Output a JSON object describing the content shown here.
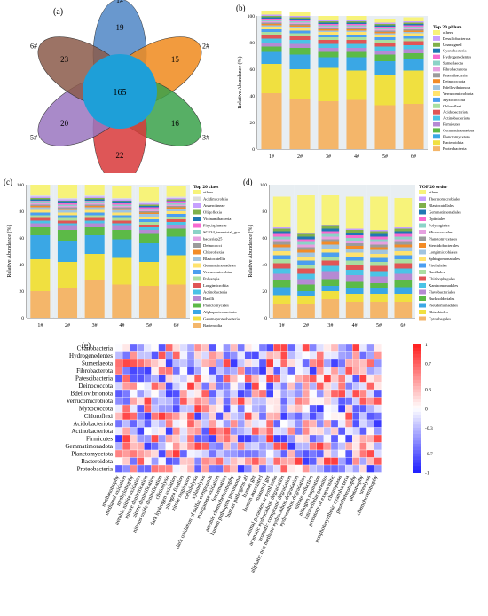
{
  "colors": {
    "palette20": [
      "#f4b66a",
      "#f0e040",
      "#3aa7e5",
      "#5cba47",
      "#b58ad3",
      "#4ac3e6",
      "#e05555",
      "#aadfa0",
      "#4b9ef0",
      "#ffe36e",
      "#a0c4e0",
      "#f28c28",
      "#9b9b9b",
      "#e6a0e0",
      "#8bd3c7",
      "#f76ad0",
      "#1f77b4",
      "#7fb04a",
      "#c7a0ff",
      "#ddd"
    ]
  },
  "venn": {
    "panel_label": "(a)",
    "center_value": "165",
    "petals": [
      {
        "label": "1#",
        "value": "19",
        "color": "#4f86c6"
      },
      {
        "label": "2#",
        "value": "15",
        "color": "#f08a1c"
      },
      {
        "label": "3#",
        "value": "16",
        "color": "#3aa14a"
      },
      {
        "label": "4#",
        "value": "22",
        "color": "#d8383a"
      },
      {
        "label": "5#",
        "value": "20",
        "color": "#9a75c0"
      },
      {
        "label": "6#",
        "value": "23",
        "color": "#8b5a4a"
      }
    ],
    "center_color": "#1e9fd8"
  },
  "chart_data": [
    {
      "type": "bar",
      "panel": "(b)",
      "stacked": true,
      "title": "Top 20 phlum",
      "ylabel": "Relative Abundance (%)",
      "ylim": [
        0,
        100
      ],
      "yticks": [
        "0",
        "20",
        "40",
        "60",
        "80",
        "100"
      ],
      "categories": [
        "1#",
        "2#",
        "3#",
        "4#",
        "5#",
        "6#"
      ],
      "legend_position": "right",
      "series": [
        {
          "name": "Proteobacteria",
          "values": [
            42,
            38,
            36,
            37,
            33,
            34
          ]
        },
        {
          "name": "Bacteroidota",
          "values": [
            22,
            22,
            25,
            22,
            23,
            25
          ]
        },
        {
          "name": "Planctomycetota",
          "values": [
            9,
            11,
            8,
            10,
            10,
            9
          ]
        },
        {
          "name": "Gemmatimonadota",
          "values": [
            4,
            5,
            4,
            4,
            5,
            4
          ]
        },
        {
          "name": "Firmicutes",
          "values": [
            3,
            3,
            3,
            3,
            3,
            3
          ]
        },
        {
          "name": "Actinobacteriota",
          "values": [
            3,
            3,
            3,
            3,
            3,
            3
          ]
        },
        {
          "name": "Acidobacteriota",
          "values": [
            3,
            3,
            3,
            3,
            3,
            3
          ]
        },
        {
          "name": "Chloroflexi",
          "values": [
            2,
            2,
            2,
            2,
            2,
            2
          ]
        },
        {
          "name": "Myxococcota",
          "values": [
            2,
            2,
            2,
            2,
            2,
            2
          ]
        },
        {
          "name": "Verrucomicrobiota",
          "values": [
            2,
            2,
            2,
            2,
            2,
            2
          ]
        },
        {
          "name": "Bdellovibrionota",
          "values": [
            1,
            1,
            1,
            1,
            1,
            1
          ]
        },
        {
          "name": "Deinococcota",
          "values": [
            1,
            1,
            1,
            1,
            1,
            1
          ]
        },
        {
          "name": "Patescibacteria",
          "values": [
            1,
            1,
            1,
            1,
            1,
            1
          ]
        },
        {
          "name": "Fibrobacterota",
          "values": [
            1,
            1,
            1,
            1,
            1,
            1
          ]
        },
        {
          "name": "Sumerlaeota",
          "values": [
            1,
            1,
            1,
            1,
            1,
            1
          ]
        },
        {
          "name": "Hydrogenedentes",
          "values": [
            1,
            1,
            1,
            1,
            1,
            1
          ]
        },
        {
          "name": "Cyanobacteria",
          "values": [
            1,
            1,
            1,
            1,
            1,
            1
          ]
        },
        {
          "name": "Unassigned",
          "values": [
            1,
            1,
            1,
            1,
            1,
            1
          ]
        },
        {
          "name": "Desulfobacterota",
          "values": [
            1,
            1,
            1,
            1,
            1,
            1
          ]
        },
        {
          "name": "others",
          "values": [
            3,
            3,
            3,
            3,
            3,
            3
          ]
        }
      ]
    },
    {
      "type": "bar",
      "panel": "(c)",
      "stacked": true,
      "title": "Top 20 class",
      "ylabel": "Relative Abundance (%)",
      "ylim": [
        0,
        100
      ],
      "yticks": [
        "0",
        "20",
        "40",
        "60",
        "80",
        "100"
      ],
      "categories": [
        "1#",
        "2#",
        "3#",
        "4#",
        "5#",
        "6#"
      ],
      "legend_position": "right",
      "series": [
        {
          "name": "Bacteroidia",
          "values": [
            20,
            22,
            28,
            25,
            24,
            25
          ]
        },
        {
          "name": "Gammaproteobacteria",
          "values": [
            24,
            20,
            20,
            20,
            18,
            22
          ]
        },
        {
          "name": "Alphaproteobacteria",
          "values": [
            18,
            16,
            14,
            14,
            14,
            14
          ]
        },
        {
          "name": "Planctomycetes",
          "values": [
            6,
            8,
            6,
            7,
            7,
            6
          ]
        },
        {
          "name": "Bacilli",
          "values": [
            3,
            3,
            3,
            3,
            3,
            3
          ]
        },
        {
          "name": "Actinobacteria",
          "values": [
            2,
            2,
            2,
            2,
            2,
            2
          ]
        },
        {
          "name": "Longimicrobiia",
          "values": [
            2,
            2,
            2,
            2,
            2,
            2
          ]
        },
        {
          "name": "Polyangia",
          "values": [
            2,
            2,
            2,
            2,
            2,
            2
          ]
        },
        {
          "name": "Verrucomicrobiae",
          "values": [
            2,
            2,
            2,
            2,
            2,
            2
          ]
        },
        {
          "name": "Gemmatimonadetes",
          "values": [
            2,
            2,
            2,
            2,
            2,
            2
          ]
        },
        {
          "name": "Blastocatellia",
          "values": [
            2,
            2,
            2,
            2,
            2,
            2
          ]
        },
        {
          "name": "Chloroflexia",
          "values": [
            1,
            1,
            1,
            1,
            1,
            1
          ]
        },
        {
          "name": "Deinococci",
          "values": [
            1,
            1,
            1,
            1,
            1,
            1
          ]
        },
        {
          "name": "bacteriap25",
          "values": [
            1,
            1,
            1,
            1,
            1,
            1
          ]
        },
        {
          "name": "SG134_terrestrial_gro",
          "values": [
            1,
            1,
            1,
            1,
            1,
            1
          ]
        },
        {
          "name": "Phycisphaerae",
          "values": [
            1,
            1,
            1,
            1,
            1,
            1
          ]
        },
        {
          "name": "Vicinamibacteria",
          "values": [
            1,
            1,
            1,
            1,
            1,
            1
          ]
        },
        {
          "name": "Oligoflexia",
          "values": [
            1,
            1,
            1,
            1,
            1,
            1
          ]
        },
        {
          "name": "Anaerolineae",
          "values": [
            1,
            1,
            1,
            1,
            1,
            1
          ]
        },
        {
          "name": "Acidimicrobiia",
          "values": [
            1,
            1,
            1,
            1,
            1,
            1
          ]
        },
        {
          "name": "others",
          "values": [
            8,
            10,
            8,
            9,
            11,
            8
          ]
        }
      ]
    },
    {
      "type": "bar",
      "panel": "(d)",
      "stacked": true,
      "title": "TOP 20 order",
      "ylabel": "Relative Abundance (%)",
      "ylim": [
        0,
        100
      ],
      "yticks": [
        "0",
        "20",
        "40",
        "60",
        "80",
        "100"
      ],
      "categories": [
        "1#",
        "2#",
        "3#",
        "4#",
        "5#",
        "6#"
      ],
      "legend_position": "right",
      "series": [
        {
          "name": "Cytophagales",
          "values": [
            10,
            10,
            14,
            12,
            12,
            12
          ]
        },
        {
          "name": "Rhizobiales",
          "values": [
            7,
            6,
            6,
            6,
            6,
            6
          ]
        },
        {
          "name": "Pseudomonadales",
          "values": [
            6,
            4,
            4,
            4,
            4,
            5
          ]
        },
        {
          "name": "Burkholderiales",
          "values": [
            5,
            5,
            5,
            5,
            4,
            5
          ]
        },
        {
          "name": "Flavobacteriales",
          "values": [
            5,
            4,
            6,
            5,
            5,
            5
          ]
        },
        {
          "name": "Xanthomonadales",
          "values": [
            4,
            4,
            4,
            4,
            4,
            4
          ]
        },
        {
          "name": "Chitinophagales",
          "values": [
            4,
            4,
            4,
            4,
            4,
            4
          ]
        },
        {
          "name": "Bacillales",
          "values": [
            3,
            3,
            3,
            3,
            3,
            3
          ]
        },
        {
          "name": "Pirellulales",
          "values": [
            3,
            3,
            3,
            3,
            3,
            3
          ]
        },
        {
          "name": "Sphingomonadales",
          "values": [
            3,
            3,
            3,
            3,
            3,
            3
          ]
        },
        {
          "name": "Longimicrobiales",
          "values": [
            3,
            3,
            3,
            3,
            3,
            3
          ]
        },
        {
          "name": "Steroidobacterales",
          "values": [
            2,
            2,
            2,
            2,
            2,
            2
          ]
        },
        {
          "name": "Planctomycetales",
          "values": [
            2,
            2,
            2,
            2,
            2,
            2
          ]
        },
        {
          "name": "Micrococcales",
          "values": [
            2,
            2,
            2,
            2,
            2,
            2
          ]
        },
        {
          "name": "Polyangiales",
          "values": [
            2,
            2,
            2,
            2,
            2,
            2
          ]
        },
        {
          "name": "Opitutales",
          "values": [
            2,
            2,
            2,
            2,
            2,
            2
          ]
        },
        {
          "name": "Gemmatimonadales",
          "values": [
            2,
            2,
            2,
            2,
            2,
            2
          ]
        },
        {
          "name": "Blastocatellales",
          "values": [
            2,
            2,
            2,
            2,
            2,
            2
          ]
        },
        {
          "name": "Thermomicrobiales",
          "values": [
            1,
            1,
            1,
            1,
            1,
            1
          ]
        },
        {
          "name": "others",
          "values": [
            23,
            28,
            22,
            24,
            25,
            22
          ]
        }
      ]
    },
    {
      "type": "heatmap",
      "panel": "(e)",
      "colorbar_ticks": [
        "1",
        "0.7",
        "0.3",
        "0",
        "-0.3",
        "-0.7",
        "-1"
      ],
      "rows": [
        "Cyanobacteria",
        "Hydrogenedentes",
        "Sumerlaeota",
        "Fibrobacterota",
        "Patescibacteria",
        "Deinococcota",
        "Bdellovibrionota",
        "Verrucomicrobiota",
        "Myxococcota",
        "Chloroflexi",
        "Acidobacteriota",
        "Actinobacteriota",
        "Firmicutes",
        "Gemmatimonadota",
        "Planctomycetota",
        "Bacteroidota",
        "Proteobacteria"
      ],
      "columns": [
        "methanotrophy",
        "methanol oxidation",
        "methylotrophy",
        "aerobic nitrite oxidation",
        "nitrate denitrification",
        "nitrite denitrification",
        "nitrous oxide denitrification",
        "chitinolysis",
        "dark hydrogen oxidation",
        "nitrogen fixation",
        "nitrite respiration",
        "cellulolysis",
        "xylanolysis",
        "dark oxidation of sulfur compounds",
        "manganese oxidation",
        "fermentation",
        "aerobic chemoheterotrophy",
        "human pathogens pneumonia",
        "human pathogens all",
        "human gut",
        "human associated",
        "mammal gut",
        "animal parasites or symbionts",
        "aromatic hydrocarbon degradation",
        "aromatic compound degradation",
        "aliphatic non methane hydrocarbon degradation",
        "hydrocarbon degradation",
        "nitrate reduction",
        "nitrogen respiration",
        "intracellular parasites",
        "predatory or exoparasitic",
        "chloroplasts",
        "nonphotosynthetic cyanobacteria",
        "photoheterotrophy",
        "phototrophy",
        "ureolysis",
        "chemoheterotrophy"
      ]
    }
  ]
}
